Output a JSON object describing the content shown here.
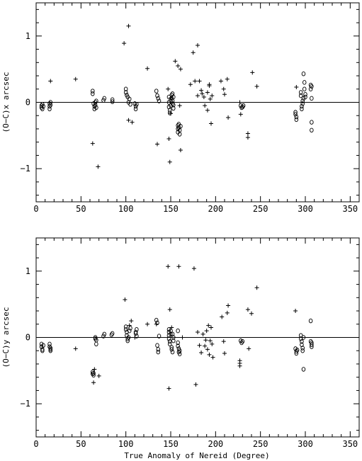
{
  "chart_data": [
    {
      "type": "scatter",
      "ylabel": "(O−C)x arcsec",
      "xlabel": "",
      "xlim": [
        0,
        360
      ],
      "ylim": [
        -1.5,
        1.5
      ],
      "xticks": [
        "0",
        "50",
        "100",
        "150",
        "200",
        "250",
        "300",
        "350"
      ],
      "yticks": [
        "−1",
        "0",
        "1"
      ],
      "zero_line": true,
      "series": [
        {
          "marker": "circle",
          "points": [
            [
              6,
              -0.05
            ],
            [
              6,
              -0.08
            ],
            [
              7,
              -0.03
            ],
            [
              7,
              -0.1
            ],
            [
              8,
              -0.06
            ],
            [
              15,
              -0.02
            ],
            [
              15,
              -0.06
            ],
            [
              15,
              -0.1
            ],
            [
              16,
              0.0
            ],
            [
              16,
              -0.04
            ],
            [
              63,
              0.17
            ],
            [
              63,
              0.13
            ],
            [
              64,
              -0.02
            ],
            [
              65,
              -0.06
            ],
            [
              65,
              -0.1
            ],
            [
              66,
              0.0
            ],
            [
              66,
              -0.04
            ],
            [
              67,
              -0.08
            ],
            [
              67,
              0.02
            ],
            [
              75,
              0.03
            ],
            [
              76,
              0.06
            ],
            [
              85,
              0.01
            ],
            [
              85,
              0.04
            ],
            [
              100,
              0.2
            ],
            [
              100,
              0.15
            ],
            [
              101,
              0.11
            ],
            [
              102,
              0.08
            ],
            [
              103,
              0.0
            ],
            [
              104,
              0.05
            ],
            [
              105,
              -0.03
            ],
            [
              110,
              -0.02
            ],
            [
              111,
              -0.06
            ],
            [
              111,
              -0.1
            ],
            [
              112,
              -0.03
            ],
            [
              134,
              0.17
            ],
            [
              135,
              0.1
            ],
            [
              136,
              0.06
            ],
            [
              137,
              0.02
            ],
            [
              148,
              0.08
            ],
            [
              148,
              0.0
            ],
            [
              148,
              -0.07
            ],
            [
              149,
              -0.12
            ],
            [
              149,
              -0.16
            ],
            [
              150,
              0.02
            ],
            [
              150,
              -0.05
            ],
            [
              151,
              0.11
            ],
            [
              151,
              0.06
            ],
            [
              152,
              0.13
            ],
            [
              152,
              0.02
            ],
            [
              152,
              -0.02
            ],
            [
              153,
              -0.04
            ],
            [
              153,
              0.08
            ],
            [
              153,
              -0.09
            ],
            [
              158,
              -0.35
            ],
            [
              158,
              -0.4
            ],
            [
              158,
              -0.45
            ],
            [
              159,
              -0.33
            ],
            [
              159,
              -0.38
            ],
            [
              160,
              -0.42
            ],
            [
              160,
              -0.48
            ],
            [
              161,
              -0.36
            ],
            [
              228,
              -0.05
            ],
            [
              229,
              -0.08
            ],
            [
              230,
              -0.07
            ],
            [
              231,
              -0.05
            ],
            [
              289,
              -0.15
            ],
            [
              289,
              -0.18
            ],
            [
              290,
              -0.22
            ],
            [
              290,
              -0.26
            ],
            [
              295,
              0.15
            ],
            [
              295,
              0.1
            ],
            [
              296,
              -0.06
            ],
            [
              296,
              -0.1
            ],
            [
              297,
              0.02
            ],
            [
              297,
              -0.02
            ],
            [
              298,
              0.06
            ],
            [
              298,
              0.43
            ],
            [
              299,
              0.3
            ],
            [
              299,
              0.2
            ],
            [
              300,
              0.12
            ],
            [
              300,
              0.08
            ],
            [
              306,
              0.26
            ],
            [
              306,
              0.2
            ],
            [
              307,
              0.24
            ],
            [
              307,
              0.06
            ],
            [
              307,
              -0.3
            ],
            [
              307,
              -0.42
            ]
          ]
        },
        {
          "marker": "plus",
          "points": [
            [
              16,
              0.32
            ],
            [
              44,
              0.35
            ],
            [
              63,
              -0.62
            ],
            [
              69,
              -0.97
            ],
            [
              98,
              0.89
            ],
            [
              103,
              1.15
            ],
            [
              103,
              -0.27
            ],
            [
              107,
              -0.3
            ],
            [
              124,
              0.51
            ],
            [
              135,
              -0.63
            ],
            [
              147,
              0.2
            ],
            [
              148,
              -0.55
            ],
            [
              149,
              -0.9
            ],
            [
              150,
              0.07
            ],
            [
              150,
              -0.17
            ],
            [
              155,
              0.62
            ],
            [
              158,
              0.55
            ],
            [
              160,
              -0.05
            ],
            [
              161,
              0.5
            ],
            [
              161,
              -0.72
            ],
            [
              172,
              0.27
            ],
            [
              175,
              0.75
            ],
            [
              177,
              0.32
            ],
            [
              180,
              0.86
            ],
            [
              180,
              0.1
            ],
            [
              182,
              0.32
            ],
            [
              184,
              0.18
            ],
            [
              185,
              0.13
            ],
            [
              187,
              0.08
            ],
            [
              188,
              -0.05
            ],
            [
              191,
              -0.12
            ],
            [
              191,
              0.15
            ],
            [
              193,
              0.27
            ],
            [
              193,
              0.25
            ],
            [
              194,
              0.05
            ],
            [
              195,
              -0.32
            ],
            [
              196,
              0.1
            ],
            [
              206,
              0.32
            ],
            [
              209,
              0.2
            ],
            [
              210,
              0.12
            ],
            [
              213,
              0.35
            ],
            [
              214,
              -0.23
            ],
            [
              227,
              0.0
            ],
            [
              228,
              -0.18
            ],
            [
              236,
              -0.47
            ],
            [
              236,
              -0.53
            ],
            [
              241,
              0.45
            ],
            [
              246,
              0.24
            ],
            [
              290,
              0.23
            ]
          ]
        }
      ]
    },
    {
      "type": "scatter",
      "ylabel": "(O−C)y arcsec",
      "xlabel": "True Anomaly of Nereid (Degree)",
      "xlim": [
        0,
        360
      ],
      "ylim": [
        -1.5,
        1.5
      ],
      "xticks": [
        "0",
        "50",
        "100",
        "150",
        "200",
        "250",
        "300",
        "350"
      ],
      "yticks": [
        "−1",
        "0",
        "1"
      ],
      "zero_line": true,
      "series": [
        {
          "marker": "circle",
          "points": [
            [
              6,
              -0.1
            ],
            [
              6,
              -0.14
            ],
            [
              7,
              -0.18
            ],
            [
              7,
              -0.2
            ],
            [
              8,
              -0.12
            ],
            [
              15,
              -0.1
            ],
            [
              15,
              -0.14
            ],
            [
              16,
              -0.18
            ],
            [
              16,
              -0.2
            ],
            [
              16,
              -0.16
            ],
            [
              63,
              -0.52
            ],
            [
              63,
              -0.55
            ],
            [
              64,
              -0.57
            ],
            [
              64,
              -0.54
            ],
            [
              66,
              -0.02
            ],
            [
              66,
              0.0
            ],
            [
              67,
              -0.04
            ],
            [
              67,
              -0.1
            ],
            [
              75,
              0.02
            ],
            [
              76,
              0.05
            ],
            [
              84,
              0.04
            ],
            [
              85,
              0.06
            ],
            [
              100,
              0.16
            ],
            [
              100,
              0.12
            ],
            [
              101,
              0.08
            ],
            [
              101,
              0.03
            ],
            [
              102,
              -0.02
            ],
            [
              102,
              -0.05
            ],
            [
              103,
              0.0
            ],
            [
              104,
              0.1
            ],
            [
              105,
              0.14
            ],
            [
              111,
              0.06
            ],
            [
              111,
              0.08
            ],
            [
              112,
              0.12
            ],
            [
              112,
              0.02
            ],
            [
              134,
              0.26
            ],
            [
              135,
              0.22
            ],
            [
              135,
              -0.12
            ],
            [
              136,
              -0.18
            ],
            [
              136,
              -0.22
            ],
            [
              137,
              0.02
            ],
            [
              148,
              0.12
            ],
            [
              148,
              0.08
            ],
            [
              148,
              0.03
            ],
            [
              148,
              -0.02
            ],
            [
              149,
              -0.06
            ],
            [
              149,
              -0.1
            ],
            [
              150,
              0.1
            ],
            [
              150,
              0.05
            ],
            [
              151,
              -0.15
            ],
            [
              151,
              -0.18
            ],
            [
              152,
              -0.22
            ],
            [
              152,
              0.05
            ],
            [
              153,
              0.0
            ],
            [
              153,
              -0.05
            ],
            [
              158,
              0.1
            ],
            [
              158,
              -0.08
            ],
            [
              158,
              -0.13
            ],
            [
              159,
              -0.17
            ],
            [
              159,
              -0.22
            ],
            [
              160,
              -0.25
            ],
            [
              160,
              -0.2
            ],
            [
              228,
              -0.05
            ],
            [
              229,
              -0.08
            ],
            [
              230,
              -0.06
            ],
            [
              289,
              -0.17
            ],
            [
              290,
              -0.21
            ],
            [
              290,
              -0.24
            ],
            [
              291,
              -0.19
            ],
            [
              295,
              0.03
            ],
            [
              295,
              -0.02
            ],
            [
              296,
              -0.06
            ],
            [
              296,
              -0.11
            ],
            [
              297,
              -0.16
            ],
            [
              297,
              -0.2
            ],
            [
              298,
              -0.48
            ],
            [
              298,
              0.0
            ],
            [
              306,
              0.25
            ],
            [
              306,
              -0.06
            ],
            [
              307,
              -0.11
            ],
            [
              307,
              -0.14
            ],
            [
              307,
              -0.08
            ]
          ]
        },
        {
          "marker": "plus",
          "points": [
            [
              44,
              -0.17
            ],
            [
              64,
              -0.68
            ],
            [
              65,
              -0.48
            ],
            [
              70,
              -0.58
            ],
            [
              99,
              0.57
            ],
            [
              104,
              0.18
            ],
            [
              106,
              0.25
            ],
            [
              110,
              0.0
            ],
            [
              124,
              0.2
            ],
            [
              134,
              0.2
            ],
            [
              147,
              1.07
            ],
            [
              148,
              -0.77
            ],
            [
              149,
              0.42
            ],
            [
              151,
              0.15
            ],
            [
              159,
              1.07
            ],
            [
              163,
              0.0
            ],
            [
              176,
              1.04
            ],
            [
              178,
              -0.71
            ],
            [
              180,
              0.08
            ],
            [
              182,
              -0.12
            ],
            [
              184,
              -0.23
            ],
            [
              186,
              0.05
            ],
            [
              188,
              -0.13
            ],
            [
              189,
              -0.04
            ],
            [
              190,
              0.1
            ],
            [
              191,
              -0.18
            ],
            [
              192,
              0.18
            ],
            [
              193,
              -0.26
            ],
            [
              194,
              -0.05
            ],
            [
              195,
              0.15
            ],
            [
              196,
              -0.1
            ],
            [
              197,
              -0.3
            ],
            [
              207,
              0.31
            ],
            [
              209,
              -0.06
            ],
            [
              210,
              -0.24
            ],
            [
              213,
              0.37
            ],
            [
              214,
              0.48
            ],
            [
              227,
              -0.35
            ],
            [
              227,
              -0.39
            ],
            [
              227,
              -0.43
            ],
            [
              236,
              0.42
            ],
            [
              237,
              -0.17
            ],
            [
              240,
              0.36
            ],
            [
              246,
              0.75
            ],
            [
              289,
              0.4
            ]
          ]
        }
      ]
    }
  ]
}
